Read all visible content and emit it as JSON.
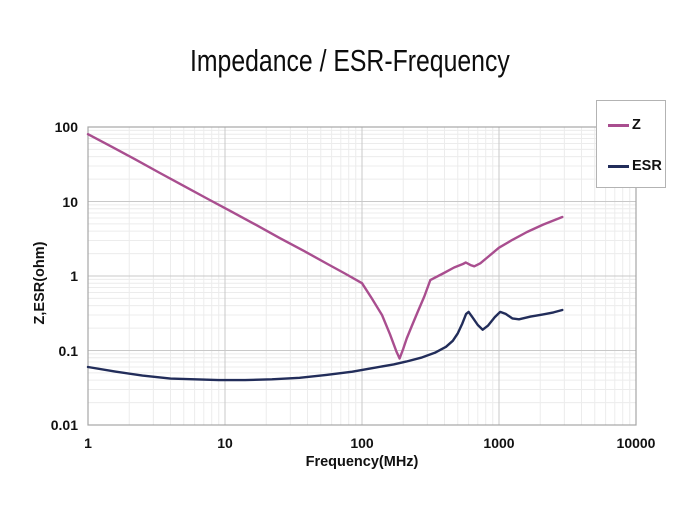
{
  "chart_data": {
    "type": "line",
    "title": "Impedance / ESR-Frequency",
    "xlabel": "Frequency(MHz)",
    "ylabel": "Z,ESR(ohm)",
    "x_scale": "log",
    "y_scale": "log",
    "xlim": [
      1,
      10000
    ],
    "ylim": [
      0.01,
      100
    ],
    "x_tick_values": [
      1,
      10,
      100,
      1000,
      10000
    ],
    "x_tick_labels": [
      "1",
      "10",
      "100",
      "1000",
      "10000"
    ],
    "y_tick_values": [
      100,
      10,
      1,
      0.1,
      0.01
    ],
    "y_tick_labels": [
      "100",
      "10",
      "1",
      "0.1",
      "0.01"
    ],
    "grid": "major and minor log gridlines, both axes",
    "legend_position": "top-right",
    "series": [
      {
        "name": "Z",
        "color": "#a94e8f",
        "points": [
          [
            1,
            80
          ],
          [
            1.5,
            54
          ],
          [
            2.2,
            37
          ],
          [
            3.3,
            24.5
          ],
          [
            5,
            16.2
          ],
          [
            7.5,
            10.8
          ],
          [
            11,
            7.4
          ],
          [
            17,
            4.8
          ],
          [
            25,
            3.25
          ],
          [
            38,
            2.15
          ],
          [
            56,
            1.45
          ],
          [
            75,
            1.08
          ],
          [
            100,
            0.8
          ],
          [
            118,
            0.5
          ],
          [
            140,
            0.3
          ],
          [
            160,
            0.165
          ],
          [
            178,
            0.098
          ],
          [
            188,
            0.078
          ],
          [
            200,
            0.105
          ],
          [
            212,
            0.145
          ],
          [
            230,
            0.21
          ],
          [
            255,
            0.33
          ],
          [
            285,
            0.53
          ],
          [
            315,
            0.88
          ],
          [
            390,
            1.08
          ],
          [
            470,
            1.3
          ],
          [
            545,
            1.45
          ],
          [
            572,
            1.52
          ],
          [
            620,
            1.4
          ],
          [
            660,
            1.35
          ],
          [
            730,
            1.48
          ],
          [
            830,
            1.8
          ],
          [
            1000,
            2.4
          ],
          [
            1250,
            3.05
          ],
          [
            1600,
            3.9
          ],
          [
            2100,
            4.9
          ],
          [
            2900,
            6.2
          ]
        ]
      },
      {
        "name": "ESR",
        "color": "#222d5a",
        "points": [
          [
            1,
            0.06
          ],
          [
            1.6,
            0.052
          ],
          [
            2.5,
            0.046
          ],
          [
            4,
            0.042
          ],
          [
            6,
            0.041
          ],
          [
            9,
            0.04
          ],
          [
            14,
            0.04
          ],
          [
            22,
            0.041
          ],
          [
            35,
            0.043
          ],
          [
            55,
            0.047
          ],
          [
            85,
            0.052
          ],
          [
            120,
            0.058
          ],
          [
            170,
            0.065
          ],
          [
            210,
            0.071
          ],
          [
            270,
            0.08
          ],
          [
            340,
            0.093
          ],
          [
            410,
            0.112
          ],
          [
            460,
            0.135
          ],
          [
            500,
            0.17
          ],
          [
            540,
            0.23
          ],
          [
            575,
            0.31
          ],
          [
            600,
            0.33
          ],
          [
            640,
            0.28
          ],
          [
            700,
            0.22
          ],
          [
            760,
            0.19
          ],
          [
            830,
            0.215
          ],
          [
            930,
            0.28
          ],
          [
            1020,
            0.33
          ],
          [
            1120,
            0.31
          ],
          [
            1250,
            0.27
          ],
          [
            1400,
            0.262
          ],
          [
            1700,
            0.285
          ],
          [
            2100,
            0.305
          ],
          [
            2500,
            0.325
          ],
          [
            2900,
            0.35
          ]
        ]
      }
    ]
  }
}
